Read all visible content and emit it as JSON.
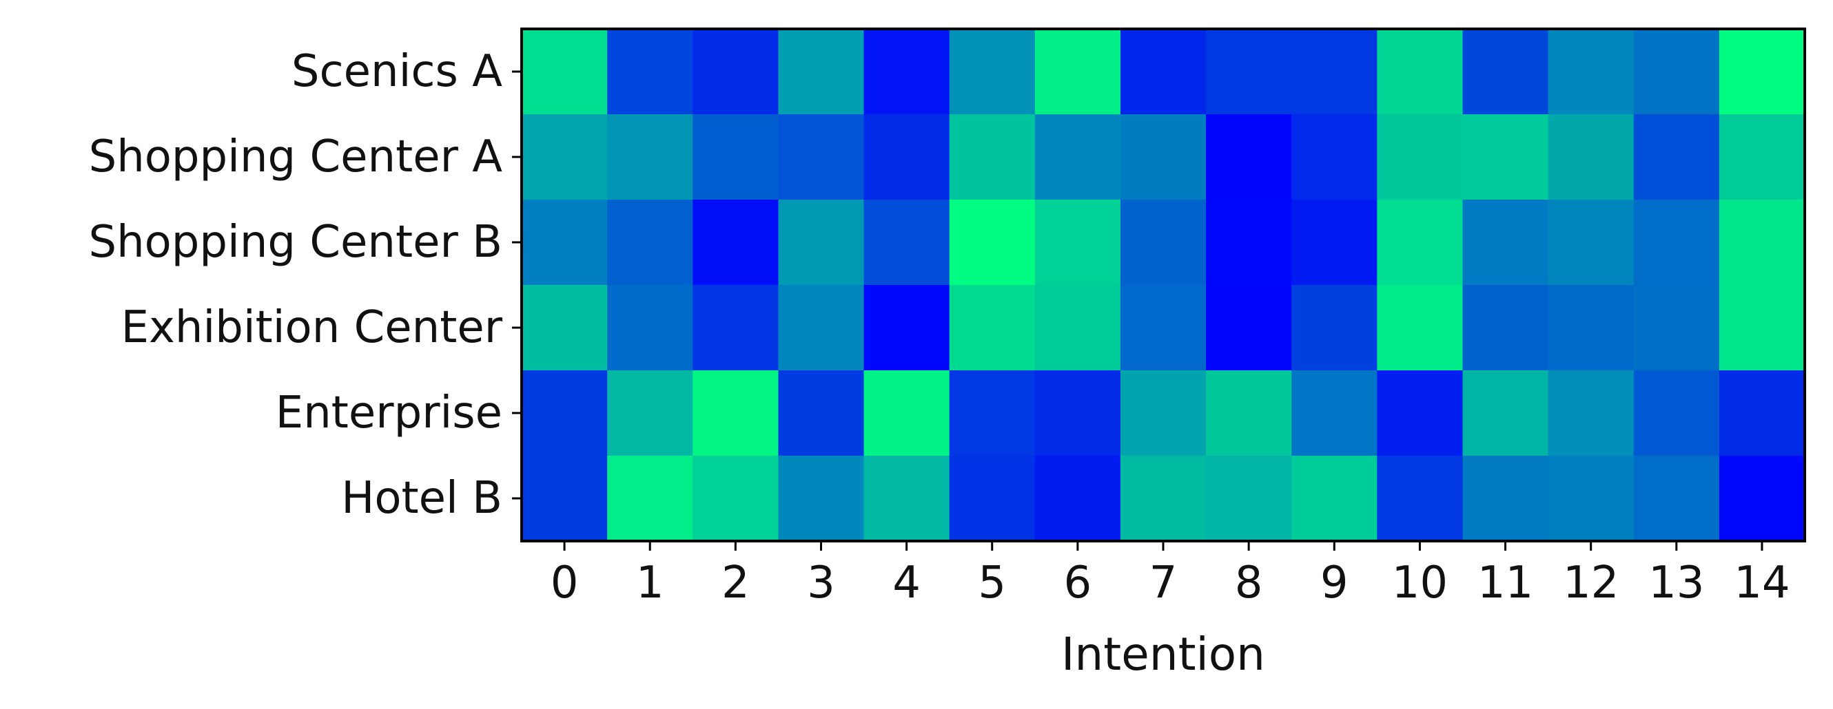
{
  "chart_data": {
    "type": "heatmap",
    "title": "",
    "xlabel": "Intention",
    "ylabel": "",
    "colormap": "winter",
    "colormap_low": "#0000ff",
    "colormap_high": "#00ff80",
    "colorbar": false,
    "grid": false,
    "x": [
      "0",
      "1",
      "2",
      "3",
      "4",
      "5",
      "6",
      "7",
      "8",
      "9",
      "10",
      "11",
      "12",
      "13",
      "14"
    ],
    "y": [
      "Scenics A",
      "Shopping Center A",
      "Shopping Center B",
      "Exhibition Center",
      "Enterprise",
      "Hotel B"
    ],
    "values": [
      [
        0.87,
        0.27,
        0.17,
        0.62,
        0.08,
        0.57,
        0.94,
        0.15,
        0.22,
        0.22,
        0.84,
        0.28,
        0.53,
        0.45,
        0.99
      ],
      [
        0.65,
        0.58,
        0.37,
        0.33,
        0.17,
        0.77,
        0.53,
        0.49,
        0.02,
        0.16,
        0.78,
        0.79,
        0.66,
        0.31,
        0.8
      ],
      [
        0.5,
        0.38,
        0.05,
        0.6,
        0.3,
        0.99,
        0.82,
        0.39,
        0.03,
        0.1,
        0.87,
        0.48,
        0.52,
        0.43,
        0.9
      ],
      [
        0.74,
        0.42,
        0.21,
        0.52,
        0.03,
        0.86,
        0.8,
        0.41,
        0.02,
        0.25,
        0.92,
        0.39,
        0.42,
        0.44,
        0.9
      ],
      [
        0.23,
        0.72,
        0.96,
        0.23,
        0.95,
        0.22,
        0.17,
        0.64,
        0.78,
        0.46,
        0.12,
        0.71,
        0.56,
        0.35,
        0.17
      ],
      [
        0.23,
        0.93,
        0.82,
        0.53,
        0.72,
        0.2,
        0.11,
        0.73,
        0.71,
        0.8,
        0.22,
        0.48,
        0.5,
        0.43,
        0.03
      ]
    ]
  }
}
